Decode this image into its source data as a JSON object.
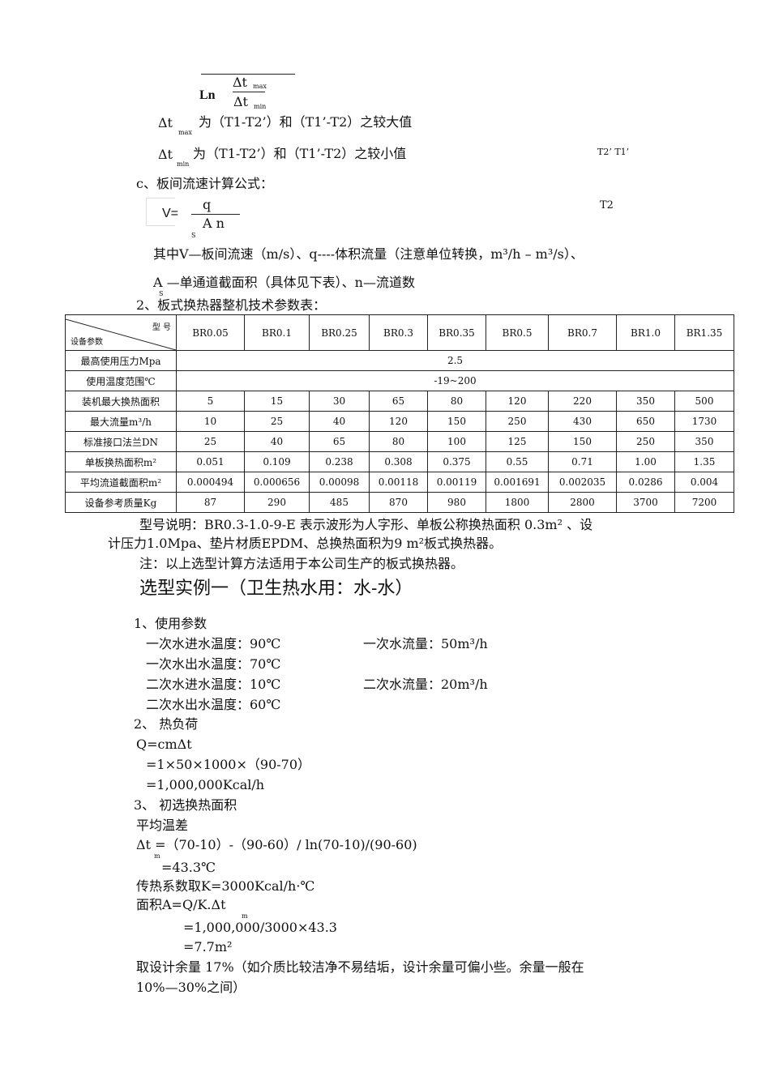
{
  "formula_lmtd": {
    "ln": "Ln",
    "num": "Δt",
    "num_sub": "max",
    "den": "Δt",
    "den_sub": "min"
  },
  "dt_max": {
    "sym": "Δt",
    "sub": "max",
    "text": "为（T1-T2’）和（T1’-T2）之较大值"
  },
  "dt_min": {
    "sym": "Δt",
    "sub": "min",
    "text": "为（T1-T2’）和（T1’-T2）之较小值"
  },
  "side_labels": {
    "t2p_t1p": "T2’ T1’",
    "t2": "T2"
  },
  "section_c": "c、板间流速计算公式：",
  "formula_v": {
    "lhs": "V=",
    "num": "q",
    "den": "A n",
    "den_sub": "S"
  },
  "where_line1": "其中V—板间流速（m/s）、q----体积流量（注意单位转换，m³/h – m³/s）、",
  "where_line2": "A —单通道截面积（具体见下表）、n—流道数",
  "where_line2_sub": "S",
  "section_2": "2、板式换热器整机技术参数表：",
  "table": {
    "corner_top": "型    号",
    "corner_bottom": "设备参数",
    "models": [
      "BR0.05",
      "BR0.1",
      "BR0.25",
      "BR0.3",
      "BR0.35",
      "BR0.5",
      "BR0.7",
      "BR1.0",
      "BR1.35"
    ],
    "rows": [
      {
        "label": "最高使用压力Mpa",
        "span": "2.5"
      },
      {
        "label": "使用温度范围℃",
        "span": "-19~200"
      },
      {
        "label": "装机最大换热面积",
        "values": [
          "5",
          "15",
          "30",
          "65",
          "80",
          "120",
          "220",
          "350",
          "500"
        ]
      },
      {
        "label": "最大流量m³/h",
        "values": [
          "10",
          "25",
          "40",
          "120",
          "150",
          "250",
          "430",
          "650",
          "1730"
        ]
      },
      {
        "label": "标准接口法兰DN",
        "values": [
          "25",
          "40",
          "65",
          "80",
          "100",
          "125",
          "150",
          "250",
          "350"
        ]
      },
      {
        "label": "单板换热面积m²",
        "values": [
          "0.051",
          "0.109",
          "0.238",
          "0.308",
          "0.375",
          "0.55",
          "0.71",
          "1.00",
          "1.35"
        ]
      },
      {
        "label": "平均流道截面积m²",
        "values": [
          "0.000494",
          "0.000656",
          "0.00098",
          "0.00118",
          "0.00119",
          "0.001691",
          "0.002035",
          "0.0286",
          "0.004"
        ]
      },
      {
        "label": "设备参考质量Kg",
        "values": [
          "87",
          "290",
          "485",
          "870",
          "980",
          "1800",
          "2800",
          "3700",
          "7200"
        ]
      }
    ]
  },
  "model_note1": "型号说明：BR0.3-1.0-9-E 表示波形为人字形、单板公称换热面积 0.3m² 、设",
  "model_note2": "计压力1.0Mpa、垫片材质EPDM、总换热面积为9 m²板式换热器。",
  "note": "注：以上选型计算方法适用于本公司生产的板式换热器。",
  "example_title": "选型实例一（卫生热水用：水-水）",
  "s1": "1、使用参数",
  "p1": "一次水进水温度：90℃",
  "p1r": "一次水流量：50m³/h",
  "p2": "一次水出水温度：70℃",
  "p3": "二次水进水温度：10℃",
  "p3r": "二次水流量：20m³/h",
  "p4": "二次水出水温度：60℃",
  "s2": "2、 热负荷",
  "q1": "Q=cmΔt",
  "q2": "=1×50×1000×（90-70）",
  "q3": "=1,000,000Kcal/h",
  "s3": "3、 初选换热面积",
  "avg": "平均温差",
  "dt1": "Δt =（70-10）-（90-60）/ ln(70-10)/(90-60)",
  "dt1_sub": "m",
  "dt2": "=43.3℃",
  "k": "传热系数取K=3000Kcal/h·℃",
  "a1": "面积A=Q/K.Δt",
  "a1_sub": "m",
  "a2": "=1,000,000/3000×43.3",
  "a3": "=7.7m²",
  "margin1": "取设计余量 17%（如介质比较洁净不易结垢，设计余量可偏小些。余量一般在",
  "margin2": "10%—30%之间）"
}
